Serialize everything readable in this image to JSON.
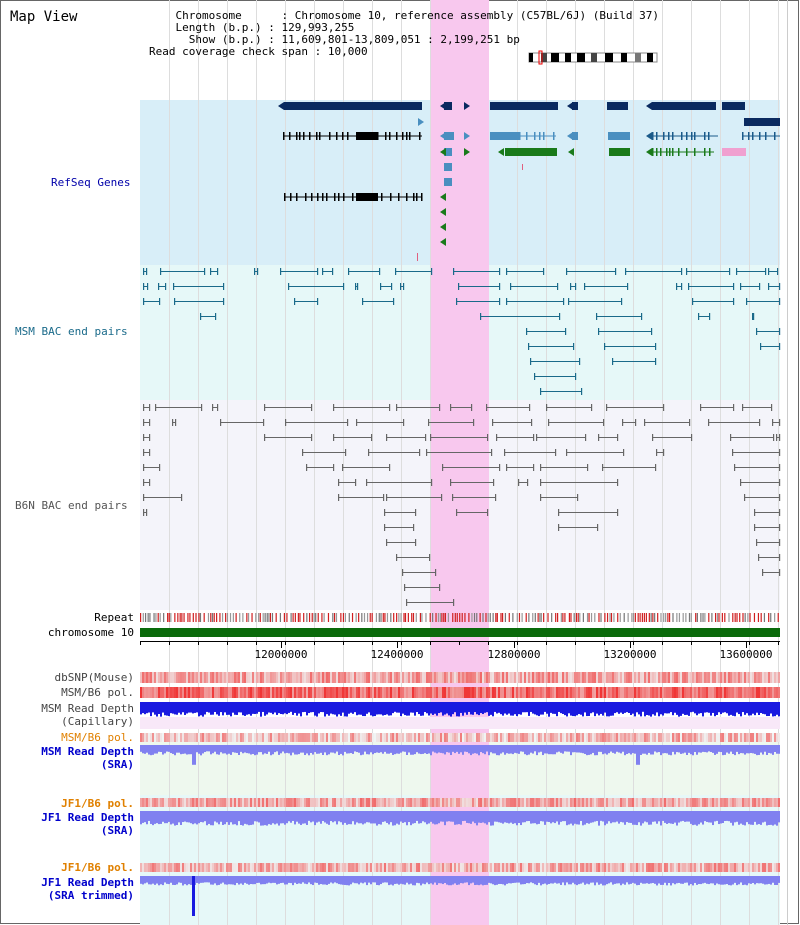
{
  "title": "Map View",
  "info": {
    "chromosome_label": "Chromosome",
    "chromosome_value": "Chromosome 10, reference assembly (C57BL/6J) (Build 37)",
    "length_label": "Length (b.p.)",
    "length_value": "129,993,255",
    "show_label": "Show (b.p.)",
    "show_value": "11,609,801-13,809,051 : 2,199,251 bp",
    "span_label": "Read coverage check span",
    "span_value": "10,000"
  },
  "tracks": {
    "refseq": "RefSeq Genes",
    "msm_bac": "MSM BAC end pairs",
    "b6n_bac": "B6N BAC end pairs",
    "repeat": "Repeat",
    "chromosome": "chromosome 10",
    "dbsnp": "dbSNP(Mouse)",
    "msm_pol1": "MSM/B6 pol.",
    "msm_depth_cap": "MSM Read Depth\n(Capillary)",
    "msm_pol2": "MSM/B6 pol.",
    "msm_depth_sra": "MSM Read Depth\n(SRA)",
    "jf1_pol1": "JF1/B6 pol.",
    "jf1_depth_sra": "JF1 Read Depth\n(SRA)",
    "jf1_pol2": "JF1/B6 pol.",
    "jf1_depth_trim": "JF1 Read Depth\n(SRA trimmed)"
  },
  "ruler": {
    "ticks": [
      "12000000",
      "12400000",
      "12800000",
      "13200000",
      "13600000"
    ]
  },
  "colors": {
    "gene_dark": "#0a2a60",
    "gene_mid": "#4a8fc0",
    "gene_green": "#1a7a1a",
    "msm_bac": "#1a6a8a",
    "b6n_bac": "#666666",
    "highlight": "#f8c8ee",
    "depth_blue": "#1a1ae0",
    "depth_light": "#8080f0",
    "pol_red": "#f03030"
  }
}
